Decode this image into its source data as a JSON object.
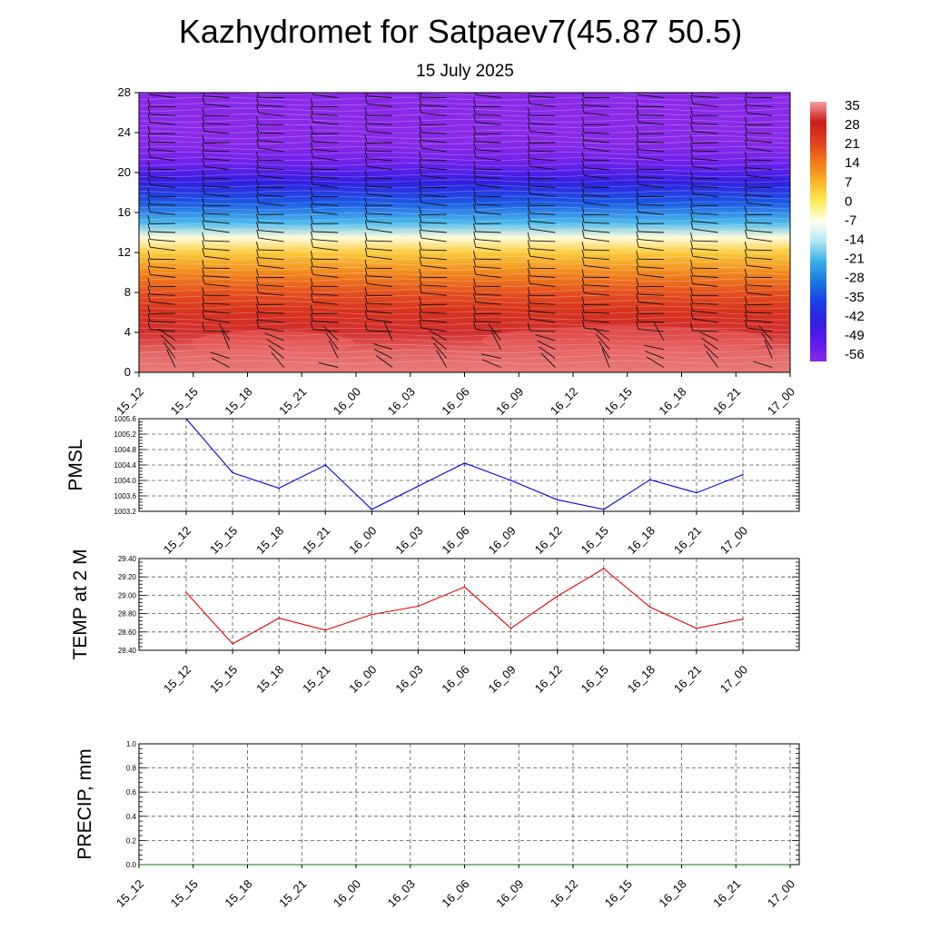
{
  "title": "Kazhydromet for Satpaev7(45.87 50.5)",
  "subtitle": "15 July 2025",
  "chart_data": [
    {
      "type": "heatmap",
      "name": "temperature-cross-section",
      "x": [
        "15_12",
        "15_15",
        "15_18",
        "15_21",
        "16_00",
        "16_03",
        "16_06",
        "16_09",
        "16_12",
        "16_15",
        "16_18",
        "16_21",
        "17_00"
      ],
      "y_ticks": [
        0,
        4,
        8,
        12,
        16,
        20,
        24,
        28
      ],
      "ylim": [
        0,
        28
      ],
      "colorbar": {
        "labels": [
          "35",
          "28",
          "21",
          "14",
          "7",
          "0",
          "-7",
          "-14",
          "-21",
          "-28",
          "-35",
          "-42",
          "-49",
          "-56"
        ],
        "colors": [
          "#f4a0a0",
          "#cc1c1c",
          "#e04020",
          "#f07818",
          "#f8b428",
          "#fcec58",
          "#fffff0",
          "#b0e8f4",
          "#38b0e8",
          "#1a78dc",
          "#1a40e8",
          "#3020e0",
          "#5a1aee",
          "#8a2ae8"
        ]
      },
      "level_temps_c": [
        {
          "level": 0,
          "value": 33
        },
        {
          "level": 2,
          "value": 32
        },
        {
          "level": 4,
          "value": 29
        },
        {
          "level": 6,
          "value": 24
        },
        {
          "level": 8,
          "value": 19
        },
        {
          "level": 10,
          "value": 12
        },
        {
          "level": 12,
          "value": 4
        },
        {
          "level": 13.5,
          "value": -6
        },
        {
          "level": 15,
          "value": -20
        },
        {
          "level": 17,
          "value": -32
        },
        {
          "level": 19,
          "value": -42
        },
        {
          "level": 21,
          "value": -52
        },
        {
          "level": 23,
          "value": -58
        },
        {
          "level": 26,
          "value": -62
        },
        {
          "level": 28,
          "value": -63
        }
      ],
      "wind_barbs": "present"
    },
    {
      "type": "line",
      "name": "pmsl",
      "ylabel": "PMSL",
      "x": [
        "15_12",
        "15_15",
        "15_18",
        "15_21",
        "16_00",
        "16_03",
        "16_06",
        "16_09",
        "16_12",
        "16_15",
        "16_18",
        "16_21",
        "17_00"
      ],
      "values": [
        1005.6,
        1004.2,
        1003.8,
        1004.4,
        1003.25,
        1003.85,
        1004.45,
        1004.0,
        1003.5,
        1003.25,
        1004.02,
        1003.68,
        1004.15
      ],
      "ylim": [
        1003.2,
        1005.6
      ],
      "y_ticks": [
        "1003.2",
        "1003.6",
        "1004.0",
        "1004.4",
        "1004.8",
        "1005.2",
        "1005.6"
      ],
      "color": "#0000ee",
      "grid": true
    },
    {
      "type": "line",
      "name": "temp-2m",
      "ylabel": "TEMP at 2 M",
      "x": [
        "15_12",
        "15_15",
        "15_18",
        "15_21",
        "16_00",
        "16_03",
        "16_06",
        "16_09",
        "16_12",
        "16_15",
        "16_18",
        "16_21",
        "17_00"
      ],
      "values": [
        29.03,
        28.47,
        28.75,
        28.62,
        28.79,
        28.88,
        29.09,
        28.64,
        28.99,
        29.29,
        28.87,
        28.64,
        28.74
      ],
      "ylim": [
        28.4,
        29.4
      ],
      "y_ticks": [
        "28.40",
        "28.60",
        "28.80",
        "29.00",
        "29.20",
        "29.40"
      ],
      "color": "#ee0000",
      "grid": true
    },
    {
      "type": "line",
      "name": "precip",
      "ylabel": "PRECIP, mm",
      "x": [
        "15_12",
        "15_15",
        "15_18",
        "15_21",
        "16_00",
        "16_03",
        "16_06",
        "16_09",
        "16_12",
        "16_15",
        "16_18",
        "16_21",
        "17_00"
      ],
      "values": [
        0,
        0,
        0,
        0,
        0,
        0,
        0,
        0,
        0,
        0,
        0,
        0,
        0
      ],
      "ylim": [
        0,
        1.0
      ],
      "y_ticks": [
        "0.0",
        "0.2",
        "0.4",
        "0.6",
        "0.8",
        "1.0"
      ],
      "color": "#008000",
      "grid": true
    }
  ]
}
